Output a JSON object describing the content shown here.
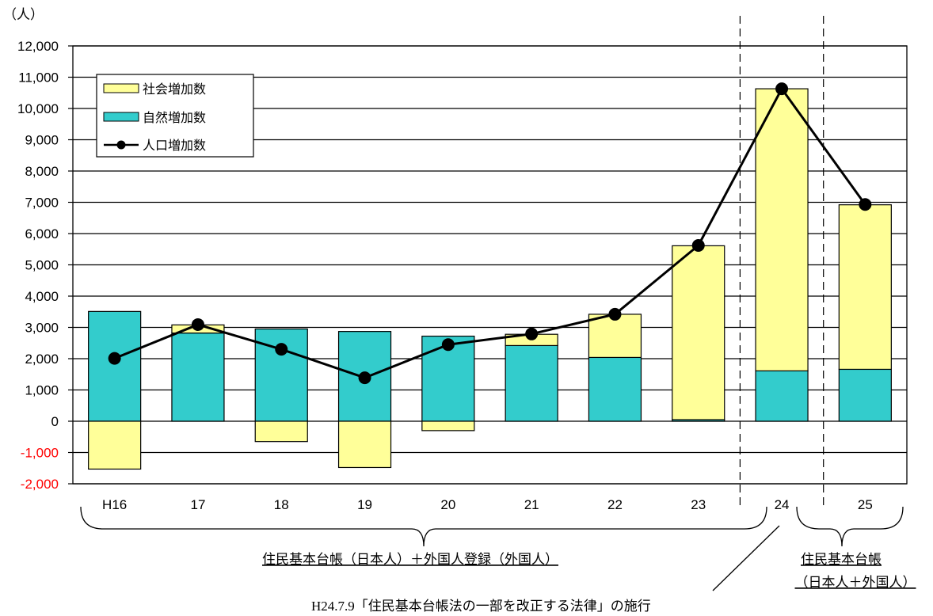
{
  "chart_data": {
    "type": "bar",
    "unit_label": "（人）",
    "categories": [
      "H16",
      "17",
      "18",
      "19",
      "20",
      "21",
      "22",
      "23",
      "24",
      "25"
    ],
    "ylim": [
      -2000,
      12000
    ],
    "ytick_labels": [
      "12,000",
      "11,000",
      "10,000",
      "9,000",
      "8,000",
      "7,000",
      "6,000",
      "5,000",
      "4,000",
      "3,000",
      "2,000",
      "1,000",
      "0",
      "-1,000",
      "-2,000"
    ],
    "grid": true,
    "legend_position": "top-left",
    "stacked": true,
    "series": [
      {
        "name": "社会増加数",
        "kind": "bar",
        "color": "#ffff99",
        "values": [
          -1530,
          260,
          -650,
          -1480,
          -300,
          360,
          1380,
          5560,
          9020,
          5260
        ]
      },
      {
        "name": "自然増加数",
        "kind": "bar",
        "color": "#33cccc",
        "values": [
          3510,
          2820,
          2950,
          2870,
          2720,
          2420,
          2040,
          50,
          1610,
          1660
        ]
      },
      {
        "name": "人口増加数",
        "kind": "line",
        "color": "#000000",
        "values": [
          2010,
          3090,
          2300,
          1390,
          2450,
          2790,
          3420,
          5620,
          10630,
          6930
        ]
      }
    ],
    "annotations": {
      "range_label_1": "住民基本台帳（日本人）＋外国人登録（外国人）",
      "range_label_2_line1": "住民基本台帳",
      "range_label_2_line2": "（日本人＋外国人）",
      "law_note": "H24.7.9「住民基本台帳法の一部を改正する法律」の施行"
    },
    "colors": {
      "negative_tick": "#ff0000",
      "axis": "#000000"
    }
  }
}
